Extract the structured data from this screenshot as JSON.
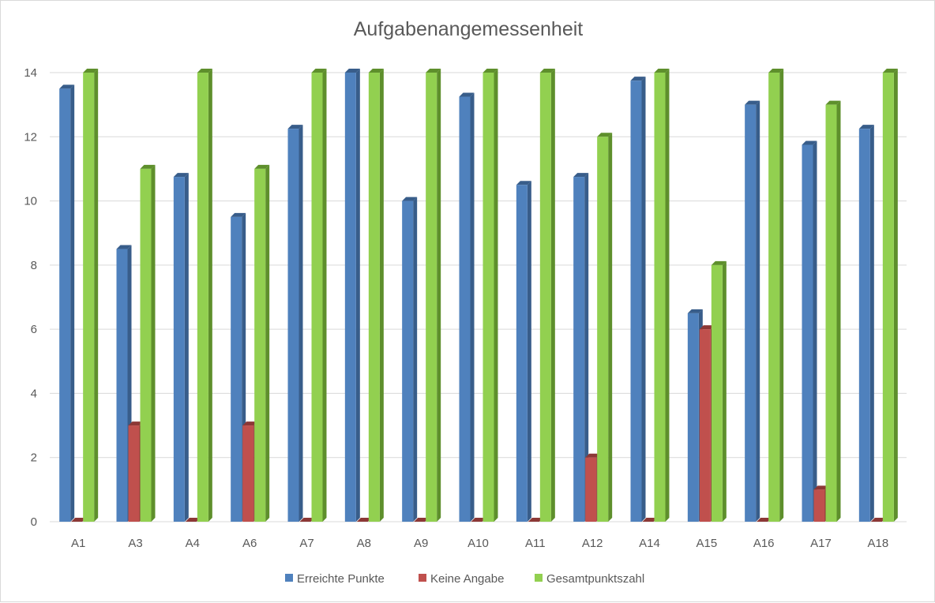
{
  "chart_data": {
    "type": "bar",
    "title": "Aufgabenangemessenheit",
    "categories": [
      "A1",
      "A3",
      "A4",
      "A6",
      "A7",
      "A8",
      "A9",
      "A10",
      "A11",
      "A12",
      "A14",
      "A15",
      "A16",
      "A17",
      "A18"
    ],
    "series": [
      {
        "name": "Erreichte Punkte",
        "color": "#4F81BD",
        "side": "#385D8A",
        "values": [
          13.5,
          8.5,
          10.75,
          9.5,
          12.25,
          14,
          10,
          13.25,
          10.5,
          10.75,
          13.75,
          6.5,
          13,
          11.75,
          12.25
        ]
      },
      {
        "name": "Keine Angabe",
        "color": "#C0504D",
        "side": "#8C3836",
        "values": [
          0,
          3,
          0,
          3,
          0,
          0,
          0,
          0,
          0,
          2,
          0,
          6,
          0,
          1,
          0
        ]
      },
      {
        "name": "Gesamtpunktszahl",
        "color": "#92D050",
        "side": "#5E8F2C",
        "values": [
          14,
          11,
          14,
          11,
          14,
          14,
          14,
          14,
          14,
          12,
          14,
          8,
          14,
          13,
          14
        ]
      }
    ],
    "ylim": [
      0,
      14
    ],
    "yticks": [
      0,
      2,
      4,
      6,
      8,
      10,
      12,
      14
    ],
    "grid": true,
    "legend_position": "bottom"
  }
}
